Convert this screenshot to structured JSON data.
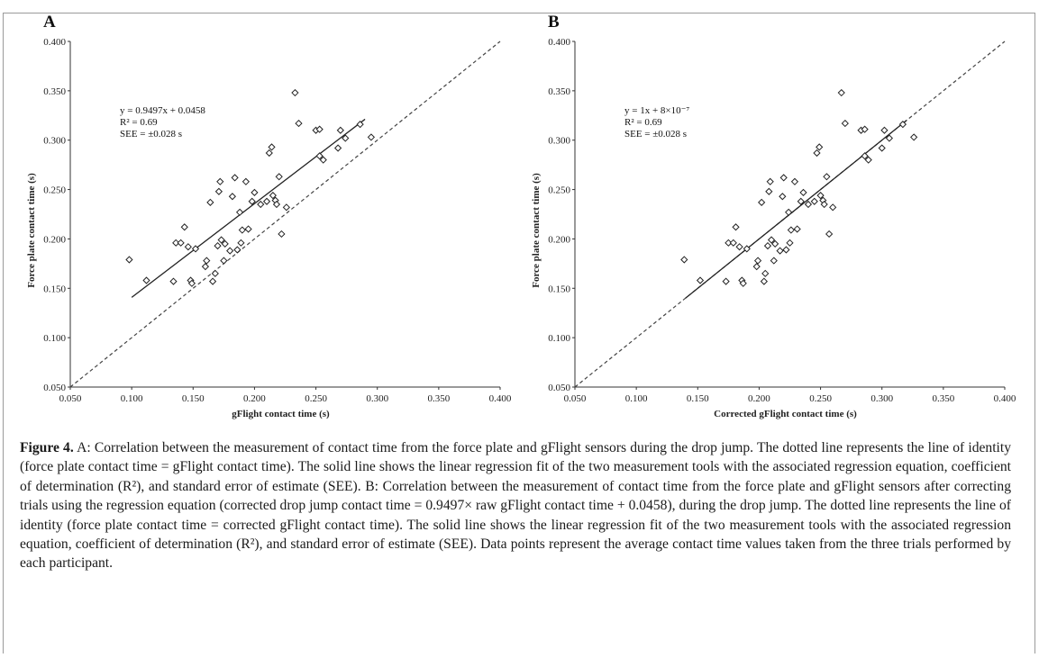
{
  "figure": {
    "caption_label": "Figure 4.",
    "caption_text": "A: Correlation between the measurement of contact time from the force plate and gFlight sensors during the drop jump. The dotted line represents the line of identity (force plate contact time = gFlight contact time). The solid line shows the linear regression fit of the two measurement tools with the associated regression equation, coefficient of determination (R²), and standard error of estimate (SEE). B: Correlation between the measurement of contact time from the force plate and gFlight sensors after correcting trials using the regression equation (corrected drop jump contact time = 0.9497× raw gFlight contact time + 0.0458), during the drop jump. The dotted line represents the line of identity (force plate contact time = corrected gFlight contact time). The solid line shows the linear regression fit of the two measurement tools with the associated regression equation, coefficient of determination (R²), and standard error of estimate (SEE). Data points represent the average contact time values taken from the three trials performed by each participant."
  },
  "chart_data": [
    {
      "type": "scatter",
      "panel": "A",
      "xlabel": "gFlight contact time (s)",
      "ylabel": "Force plate contact time (s)",
      "xlim": [
        0.05,
        0.4
      ],
      "ylim": [
        0.05,
        0.4
      ],
      "x_ticks": [
        "0.050",
        "0.100",
        "0.150",
        "0.200",
        "0.250",
        "0.300",
        "0.350",
        "0.400"
      ],
      "y_ticks": [
        "0.050",
        "0.100",
        "0.150",
        "0.200",
        "0.250",
        "0.300",
        "0.350",
        "0.400"
      ],
      "annotations": [
        "y = 0.9497x + 0.0458",
        "R² = 0.69",
        "SEE = ±0.028 s"
      ],
      "identity_line": {
        "style": "dotted",
        "from": [
          0.05,
          0.05
        ],
        "to": [
          0.4,
          0.4
        ]
      },
      "regression_line": {
        "style": "solid",
        "slope": 0.9497,
        "intercept": 0.0458,
        "x_range": [
          0.1,
          0.29
        ]
      },
      "points": [
        [
          0.098,
          0.179
        ],
        [
          0.112,
          0.158
        ],
        [
          0.134,
          0.157
        ],
        [
          0.136,
          0.196
        ],
        [
          0.14,
          0.196
        ],
        [
          0.143,
          0.212
        ],
        [
          0.146,
          0.192
        ],
        [
          0.148,
          0.158
        ],
        [
          0.149,
          0.155
        ],
        [
          0.152,
          0.19
        ],
        [
          0.16,
          0.172
        ],
        [
          0.161,
          0.178
        ],
        [
          0.164,
          0.237
        ],
        [
          0.166,
          0.157
        ],
        [
          0.168,
          0.165
        ],
        [
          0.17,
          0.193
        ],
        [
          0.171,
          0.248
        ],
        [
          0.172,
          0.258
        ],
        [
          0.173,
          0.199
        ],
        [
          0.175,
          0.178
        ],
        [
          0.176,
          0.195
        ],
        [
          0.18,
          0.188
        ],
        [
          0.182,
          0.243
        ],
        [
          0.184,
          0.262
        ],
        [
          0.186,
          0.189
        ],
        [
          0.188,
          0.227
        ],
        [
          0.189,
          0.196
        ],
        [
          0.19,
          0.209
        ],
        [
          0.193,
          0.258
        ],
        [
          0.195,
          0.21
        ],
        [
          0.198,
          0.238
        ],
        [
          0.2,
          0.247
        ],
        [
          0.205,
          0.235
        ],
        [
          0.21,
          0.238
        ],
        [
          0.212,
          0.287
        ],
        [
          0.214,
          0.293
        ],
        [
          0.215,
          0.244
        ],
        [
          0.217,
          0.239
        ],
        [
          0.218,
          0.235
        ],
        [
          0.22,
          0.263
        ],
        [
          0.222,
          0.205
        ],
        [
          0.226,
          0.232
        ],
        [
          0.233,
          0.348
        ],
        [
          0.236,
          0.317
        ],
        [
          0.25,
          0.31
        ],
        [
          0.253,
          0.311
        ],
        [
          0.253,
          0.284
        ],
        [
          0.256,
          0.28
        ],
        [
          0.268,
          0.292
        ],
        [
          0.27,
          0.31
        ],
        [
          0.274,
          0.302
        ],
        [
          0.286,
          0.316
        ],
        [
          0.295,
          0.303
        ]
      ]
    },
    {
      "type": "scatter",
      "panel": "B",
      "xlabel": "Corrected gFlight contact time (s)",
      "ylabel": "Force plate contact time (s)",
      "xlim": [
        0.05,
        0.4
      ],
      "ylim": [
        0.05,
        0.4
      ],
      "x_ticks": [
        "0.050",
        "0.100",
        "0.150",
        "0.200",
        "0.250",
        "0.300",
        "0.350",
        "0.400"
      ],
      "y_ticks": [
        "0.050",
        "0.100",
        "0.150",
        "0.200",
        "0.250",
        "0.300",
        "0.350",
        "0.400"
      ],
      "annotations": [
        "y = 1x + 8×10⁻⁷",
        "R² = 0.69",
        "SEE = ±0.028 s"
      ],
      "identity_line": {
        "style": "dotted",
        "from": [
          0.05,
          0.05
        ],
        "to": [
          0.4,
          0.4
        ]
      },
      "regression_line": {
        "style": "solid",
        "slope": 1.0,
        "intercept": 8e-07,
        "x_range": [
          0.14,
          0.32
        ]
      },
      "points": [
        [
          0.139,
          0.179
        ],
        [
          0.152,
          0.158
        ],
        [
          0.173,
          0.157
        ],
        [
          0.175,
          0.196
        ],
        [
          0.179,
          0.196
        ],
        [
          0.181,
          0.212
        ],
        [
          0.184,
          0.192
        ],
        [
          0.186,
          0.158
        ],
        [
          0.187,
          0.155
        ],
        [
          0.19,
          0.19
        ],
        [
          0.198,
          0.172
        ],
        [
          0.199,
          0.178
        ],
        [
          0.202,
          0.237
        ],
        [
          0.204,
          0.157
        ],
        [
          0.205,
          0.165
        ],
        [
          0.207,
          0.193
        ],
        [
          0.208,
          0.248
        ],
        [
          0.209,
          0.258
        ],
        [
          0.21,
          0.199
        ],
        [
          0.212,
          0.178
        ],
        [
          0.213,
          0.195
        ],
        [
          0.217,
          0.188
        ],
        [
          0.219,
          0.243
        ],
        [
          0.22,
          0.262
        ],
        [
          0.222,
          0.189
        ],
        [
          0.224,
          0.227
        ],
        [
          0.225,
          0.196
        ],
        [
          0.226,
          0.209
        ],
        [
          0.229,
          0.258
        ],
        [
          0.231,
          0.21
        ],
        [
          0.234,
          0.238
        ],
        [
          0.236,
          0.247
        ],
        [
          0.24,
          0.235
        ],
        [
          0.245,
          0.238
        ],
        [
          0.247,
          0.287
        ],
        [
          0.249,
          0.293
        ],
        [
          0.25,
          0.244
        ],
        [
          0.252,
          0.239
        ],
        [
          0.253,
          0.235
        ],
        [
          0.255,
          0.263
        ],
        [
          0.257,
          0.205
        ],
        [
          0.26,
          0.232
        ],
        [
          0.267,
          0.348
        ],
        [
          0.27,
          0.317
        ],
        [
          0.283,
          0.31
        ],
        [
          0.286,
          0.311
        ],
        [
          0.286,
          0.284
        ],
        [
          0.289,
          0.28
        ],
        [
          0.3,
          0.292
        ],
        [
          0.302,
          0.31
        ],
        [
          0.306,
          0.302
        ],
        [
          0.317,
          0.316
        ],
        [
          0.326,
          0.303
        ]
      ]
    }
  ]
}
